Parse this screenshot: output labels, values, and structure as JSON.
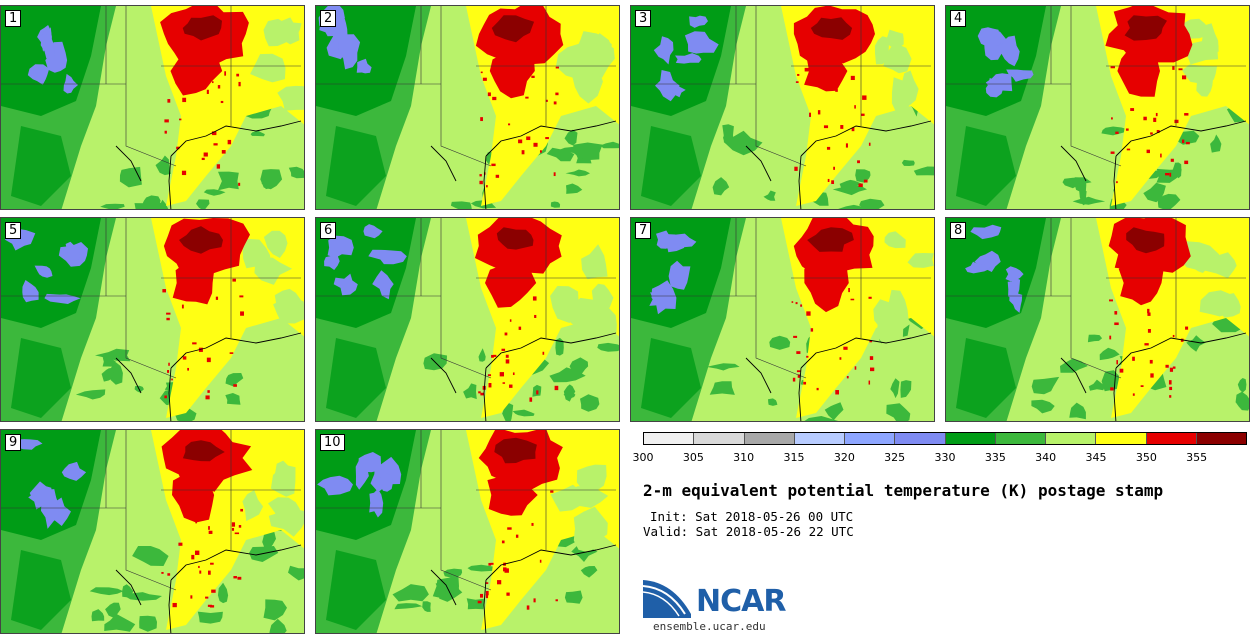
{
  "panels": [
    {
      "label": "1"
    },
    {
      "label": "2"
    },
    {
      "label": "3"
    },
    {
      "label": "4"
    },
    {
      "label": "5"
    },
    {
      "label": "6"
    },
    {
      "label": "7"
    },
    {
      "label": "8"
    },
    {
      "label": "9"
    },
    {
      "label": "10"
    }
  ],
  "colorbar": {
    "colors": [
      "#f0f0f0",
      "#d9d9d9",
      "#a8a8a8",
      "#b8ccff",
      "#8ea6ff",
      "#7f8bf2",
      "#009c16",
      "#3cb83c",
      "#b8f26a",
      "#ffff14",
      "#e60000",
      "#8b0000"
    ],
    "tick_labels": [
      "300",
      "305",
      "310",
      "315",
      "320",
      "325",
      "330",
      "335",
      "340",
      "345",
      "350",
      "355"
    ]
  },
  "title": "2-m equivalent potential temperature (K) postage stamp",
  "init": "Init: Sat 2018-05-26 00 UTC",
  "valid": "Valid: Sat 2018-05-26 22 UTC",
  "logo": {
    "text": "NCAR",
    "site": "ensemble.ucar.edu"
  }
}
